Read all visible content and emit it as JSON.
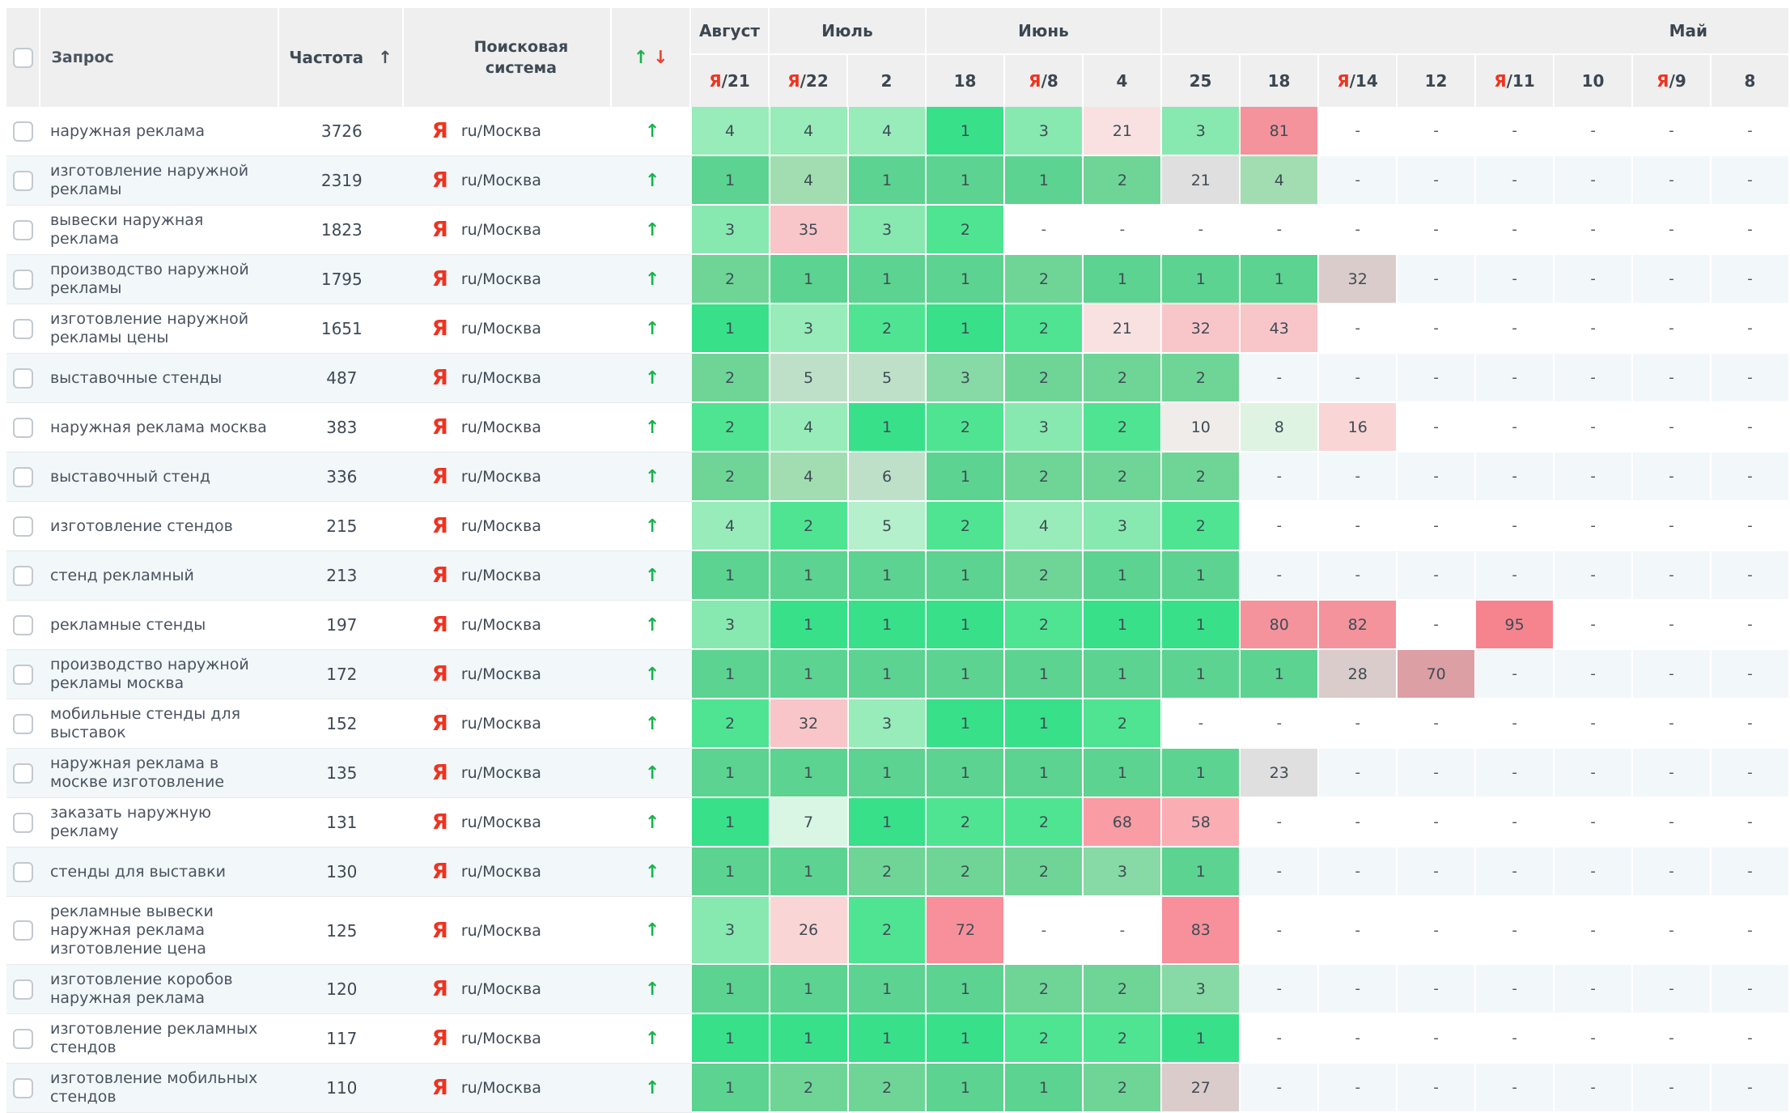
{
  "header": {
    "query_label": "Запрос",
    "frequency_label": "Частота",
    "frequency_sort_arrow": "↑",
    "engine_label": "Поисковая система",
    "trend_up": "↑",
    "trend_down": "↓",
    "month_groups": [
      {
        "label": "Август",
        "span": 1,
        "align": "center"
      },
      {
        "label": "Июль",
        "span": 2,
        "align": "center"
      },
      {
        "label": "Июнь",
        "span": 3,
        "align": "center"
      },
      {
        "label": "Май",
        "span": 8,
        "align": "right"
      }
    ],
    "date_columns": [
      {
        "ya": true,
        "day": "21"
      },
      {
        "ya": true,
        "day": "22"
      },
      {
        "ya": false,
        "day": "2"
      },
      {
        "ya": false,
        "day": "18"
      },
      {
        "ya": true,
        "day": "8"
      },
      {
        "ya": false,
        "day": "4"
      },
      {
        "ya": false,
        "day": "25"
      },
      {
        "ya": false,
        "day": "18"
      },
      {
        "ya": true,
        "day": "14"
      },
      {
        "ya": false,
        "day": "12"
      },
      {
        "ya": true,
        "day": "11"
      },
      {
        "ya": false,
        "day": "10"
      },
      {
        "ya": true,
        "day": "9"
      },
      {
        "ya": false,
        "day": "8"
      }
    ],
    "ya_prefix": "Я",
    "day_separator": "/"
  },
  "engine": {
    "logo": "Я",
    "region": "ru/Москва"
  },
  "colors": {
    "accent_green": "#17b34b",
    "accent_red": "#e8432d",
    "yandex_red": "#f0321f",
    "header_bg": "#efefef",
    "alt_row_bg": "#f2f7fa"
  },
  "rows": [
    {
      "query": "наружная реклама",
      "frequency": "3726",
      "trend": "up",
      "cells": [
        [
          "4",
          "g4v"
        ],
        [
          "4",
          "g4v"
        ],
        [
          "4",
          "g4v"
        ],
        [
          "1",
          "g1v"
        ],
        [
          "3",
          "g3v"
        ],
        [
          "21",
          "p1"
        ],
        [
          "3",
          "g3v"
        ],
        [
          "81",
          "r1"
        ],
        [
          "-",
          ""
        ],
        [
          "-",
          ""
        ],
        [
          "-",
          ""
        ],
        [
          "-",
          ""
        ],
        [
          "-",
          ""
        ],
        [
          "-",
          ""
        ]
      ]
    },
    {
      "query": "изготовление наружной рекламы",
      "frequency": "2319",
      "trend": "up",
      "cells": [
        [
          "1",
          "g1m"
        ],
        [
          "4",
          "g4m"
        ],
        [
          "1",
          "g1m"
        ],
        [
          "1",
          "g1m"
        ],
        [
          "1",
          "g1m"
        ],
        [
          "2",
          "g2m"
        ],
        [
          "21",
          "gray"
        ],
        [
          "4",
          "g4m"
        ],
        [
          "-",
          ""
        ],
        [
          "-",
          ""
        ],
        [
          "-",
          ""
        ],
        [
          "-",
          ""
        ],
        [
          "-",
          ""
        ],
        [
          "-",
          ""
        ]
      ]
    },
    {
      "query": "вывески наружная реклама",
      "frequency": "1823",
      "trend": "up",
      "cells": [
        [
          "3",
          "g3v"
        ],
        [
          "35",
          "p2"
        ],
        [
          "3",
          "g3v"
        ],
        [
          "2",
          "g2v"
        ],
        [
          "-",
          ""
        ],
        [
          "-",
          ""
        ],
        [
          "-",
          ""
        ],
        [
          "-",
          ""
        ],
        [
          "-",
          ""
        ],
        [
          "-",
          ""
        ],
        [
          "-",
          ""
        ],
        [
          "-",
          ""
        ],
        [
          "-",
          ""
        ],
        [
          "-",
          ""
        ]
      ]
    },
    {
      "query": "производство наружной рекламы",
      "frequency": "1795",
      "trend": "up",
      "cells": [
        [
          "2",
          "g2m"
        ],
        [
          "1",
          "g1m"
        ],
        [
          "1",
          "g1m"
        ],
        [
          "1",
          "g1m"
        ],
        [
          "2",
          "g2m"
        ],
        [
          "1",
          "g1m"
        ],
        [
          "1",
          "g1m"
        ],
        [
          "1",
          "g1m"
        ],
        [
          "32",
          "pgray"
        ],
        [
          "-",
          ""
        ],
        [
          "-",
          ""
        ],
        [
          "-",
          ""
        ],
        [
          "-",
          ""
        ],
        [
          "-",
          ""
        ]
      ]
    },
    {
      "query": "изготовление наружной рекламы цены",
      "frequency": "1651",
      "trend": "up",
      "cells": [
        [
          "1",
          "g1v"
        ],
        [
          "3",
          "g4v"
        ],
        [
          "2",
          "g2v"
        ],
        [
          "1",
          "g1v"
        ],
        [
          "2",
          "g2v"
        ],
        [
          "21",
          "p1"
        ],
        [
          "32",
          "p2"
        ],
        [
          "43",
          "p2"
        ],
        [
          "-",
          ""
        ],
        [
          "-",
          ""
        ],
        [
          "-",
          ""
        ],
        [
          "-",
          ""
        ],
        [
          "-",
          ""
        ],
        [
          "-",
          ""
        ]
      ]
    },
    {
      "query": "выставочные стенды",
      "frequency": "487",
      "trend": "up",
      "cells": [
        [
          "2",
          "g2m"
        ],
        [
          "5",
          "g5m"
        ],
        [
          "5",
          "g5m"
        ],
        [
          "3",
          "g3m"
        ],
        [
          "2",
          "g2m"
        ],
        [
          "2",
          "g2m"
        ],
        [
          "2",
          "g2m"
        ],
        [
          "-",
          ""
        ],
        [
          "-",
          ""
        ],
        [
          "-",
          ""
        ],
        [
          "-",
          ""
        ],
        [
          "-",
          ""
        ],
        [
          "-",
          ""
        ],
        [
          "-",
          ""
        ]
      ]
    },
    {
      "query": "наружная реклама москва",
      "frequency": "383",
      "trend": "up",
      "cells": [
        [
          "2",
          "g2v"
        ],
        [
          "4",
          "g4v"
        ],
        [
          "1",
          "g1v"
        ],
        [
          "2",
          "g2v"
        ],
        [
          "3",
          "g3v"
        ],
        [
          "2",
          "g2v"
        ],
        [
          "10",
          "gray2"
        ],
        [
          "8",
          "gpale"
        ],
        [
          "16",
          "p3"
        ],
        [
          "-",
          ""
        ],
        [
          "-",
          ""
        ],
        [
          "-",
          ""
        ],
        [
          "-",
          ""
        ],
        [
          "-",
          ""
        ]
      ]
    },
    {
      "query": "выставочный стенд",
      "frequency": "336",
      "trend": "up",
      "cells": [
        [
          "2",
          "g2m"
        ],
        [
          "4",
          "g4m"
        ],
        [
          "6",
          "g5m"
        ],
        [
          "1",
          "g1m"
        ],
        [
          "2",
          "g2m"
        ],
        [
          "2",
          "g2m"
        ],
        [
          "2",
          "g2m"
        ],
        [
          "-",
          ""
        ],
        [
          "-",
          ""
        ],
        [
          "-",
          ""
        ],
        [
          "-",
          ""
        ],
        [
          "-",
          ""
        ],
        [
          "-",
          ""
        ],
        [
          "-",
          ""
        ]
      ]
    },
    {
      "query": "изготовление стендов",
      "frequency": "215",
      "trend": "up",
      "cells": [
        [
          "4",
          "g4v"
        ],
        [
          "2",
          "g2v"
        ],
        [
          "5",
          "g5v"
        ],
        [
          "2",
          "g2v"
        ],
        [
          "4",
          "g4v"
        ],
        [
          "3",
          "g3v"
        ],
        [
          "2",
          "g2v"
        ],
        [
          "-",
          ""
        ],
        [
          "-",
          ""
        ],
        [
          "-",
          ""
        ],
        [
          "-",
          ""
        ],
        [
          "-",
          ""
        ],
        [
          "-",
          ""
        ],
        [
          "-",
          ""
        ]
      ]
    },
    {
      "query": "стенд рекламный",
      "frequency": "213",
      "trend": "up",
      "cells": [
        [
          "1",
          "g1m"
        ],
        [
          "1",
          "g1m"
        ],
        [
          "1",
          "g1m"
        ],
        [
          "1",
          "g1m"
        ],
        [
          "2",
          "g2m"
        ],
        [
          "1",
          "g1m"
        ],
        [
          "1",
          "g1m"
        ],
        [
          "-",
          ""
        ],
        [
          "-",
          ""
        ],
        [
          "-",
          ""
        ],
        [
          "-",
          ""
        ],
        [
          "-",
          ""
        ],
        [
          "-",
          ""
        ],
        [
          "-",
          ""
        ]
      ]
    },
    {
      "query": "рекламные стенды",
      "frequency": "197",
      "trend": "up",
      "cells": [
        [
          "3",
          "g3v"
        ],
        [
          "1",
          "g1v"
        ],
        [
          "1",
          "g1v"
        ],
        [
          "1",
          "g1v"
        ],
        [
          "2",
          "g2v"
        ],
        [
          "1",
          "g1v"
        ],
        [
          "1",
          "g1v"
        ],
        [
          "80",
          "r1"
        ],
        [
          "82",
          "r1"
        ],
        [
          "-",
          ""
        ],
        [
          "95",
          "r2"
        ],
        [
          "-",
          ""
        ],
        [
          "-",
          ""
        ],
        [
          "-",
          ""
        ]
      ]
    },
    {
      "query": "производство наружной рекламы москва",
      "frequency": "172",
      "trend": "up",
      "cells": [
        [
          "1",
          "g1m"
        ],
        [
          "1",
          "g1m"
        ],
        [
          "1",
          "g1m"
        ],
        [
          "1",
          "g1m"
        ],
        [
          "1",
          "g1m"
        ],
        [
          "1",
          "g1m"
        ],
        [
          "1",
          "g1m"
        ],
        [
          "1",
          "g1m"
        ],
        [
          "28",
          "pgray"
        ],
        [
          "70",
          "r6"
        ],
        [
          "-",
          ""
        ],
        [
          "-",
          ""
        ],
        [
          "-",
          ""
        ],
        [
          "-",
          ""
        ]
      ]
    },
    {
      "query": "мобильные стенды для выставок",
      "frequency": "152",
      "trend": "up",
      "cells": [
        [
          "2",
          "g2v"
        ],
        [
          "32",
          "p2"
        ],
        [
          "3",
          "g4v"
        ],
        [
          "1",
          "g1v"
        ],
        [
          "1",
          "g1v"
        ],
        [
          "2",
          "g2v"
        ],
        [
          "-",
          ""
        ],
        [
          "-",
          ""
        ],
        [
          "-",
          ""
        ],
        [
          "-",
          ""
        ],
        [
          "-",
          ""
        ],
        [
          "-",
          ""
        ],
        [
          "-",
          ""
        ],
        [
          "-",
          ""
        ]
      ]
    },
    {
      "query": "наружная реклама в москве изготовление",
      "frequency": "135",
      "trend": "up",
      "cells": [
        [
          "1",
          "g1m"
        ],
        [
          "1",
          "g1m"
        ],
        [
          "1",
          "g1m"
        ],
        [
          "1",
          "g1m"
        ],
        [
          "1",
          "g1m"
        ],
        [
          "1",
          "g1m"
        ],
        [
          "1",
          "g1m"
        ],
        [
          "23",
          "gray"
        ],
        [
          "-",
          ""
        ],
        [
          "-",
          ""
        ],
        [
          "-",
          ""
        ],
        [
          "-",
          ""
        ],
        [
          "-",
          ""
        ],
        [
          "-",
          ""
        ]
      ]
    },
    {
      "query": "заказать наружную рекламу",
      "frequency": "131",
      "trend": "up",
      "cells": [
        [
          "1",
          "g1v"
        ],
        [
          "7",
          "g7v"
        ],
        [
          "1",
          "g1v"
        ],
        [
          "2",
          "g2v"
        ],
        [
          "2",
          "g2v"
        ],
        [
          "68",
          "r4"
        ],
        [
          "58",
          "r5"
        ],
        [
          "-",
          ""
        ],
        [
          "-",
          ""
        ],
        [
          "-",
          ""
        ],
        [
          "-",
          ""
        ],
        [
          "-",
          ""
        ],
        [
          "-",
          ""
        ],
        [
          "-",
          ""
        ]
      ]
    },
    {
      "query": "стенды для выставки",
      "frequency": "130",
      "trend": "up",
      "cells": [
        [
          "1",
          "g1m"
        ],
        [
          "1",
          "g1m"
        ],
        [
          "2",
          "g2m"
        ],
        [
          "2",
          "g2m"
        ],
        [
          "2",
          "g2m"
        ],
        [
          "3",
          "g3m"
        ],
        [
          "1",
          "g1m"
        ],
        [
          "-",
          ""
        ],
        [
          "-",
          ""
        ],
        [
          "-",
          ""
        ],
        [
          "-",
          ""
        ],
        [
          "-",
          ""
        ],
        [
          "-",
          ""
        ],
        [
          "-",
          ""
        ]
      ]
    },
    {
      "query": "рекламные вывески наружная реклама изготовление цена",
      "frequency": "125",
      "trend": "up",
      "cells": [
        [
          "3",
          "g3v"
        ],
        [
          "26",
          "p3"
        ],
        [
          "2",
          "g2v"
        ],
        [
          "72",
          "r3"
        ],
        [
          "-",
          ""
        ],
        [
          "-",
          ""
        ],
        [
          "83",
          "r3"
        ],
        [
          "-",
          ""
        ],
        [
          "-",
          ""
        ],
        [
          "-",
          ""
        ],
        [
          "-",
          ""
        ],
        [
          "-",
          ""
        ],
        [
          "-",
          ""
        ],
        [
          "-",
          ""
        ]
      ]
    },
    {
      "query": "изготовление коробов наружная реклама",
      "frequency": "120",
      "trend": "up",
      "cells": [
        [
          "1",
          "g1m"
        ],
        [
          "1",
          "g1m"
        ],
        [
          "1",
          "g1m"
        ],
        [
          "1",
          "g1m"
        ],
        [
          "2",
          "g2m"
        ],
        [
          "2",
          "g2m"
        ],
        [
          "3",
          "g3m"
        ],
        [
          "-",
          ""
        ],
        [
          "-",
          ""
        ],
        [
          "-",
          ""
        ],
        [
          "-",
          ""
        ],
        [
          "-",
          ""
        ],
        [
          "-",
          ""
        ],
        [
          "-",
          ""
        ]
      ]
    },
    {
      "query": "изготовление рекламных стендов",
      "frequency": "117",
      "trend": "up",
      "cells": [
        [
          "1",
          "g1v"
        ],
        [
          "1",
          "g1v"
        ],
        [
          "1",
          "g1v"
        ],
        [
          "1",
          "g1v"
        ],
        [
          "2",
          "g2v"
        ],
        [
          "2",
          "g2v"
        ],
        [
          "1",
          "g1v"
        ],
        [
          "-",
          ""
        ],
        [
          "-",
          ""
        ],
        [
          "-",
          ""
        ],
        [
          "-",
          ""
        ],
        [
          "-",
          ""
        ],
        [
          "-",
          ""
        ],
        [
          "-",
          ""
        ]
      ]
    },
    {
      "query": "изготовление мобильных стендов",
      "frequency": "110",
      "trend": "up",
      "cells": [
        [
          "1",
          "g1m"
        ],
        [
          "2",
          "g2m"
        ],
        [
          "2",
          "g2m"
        ],
        [
          "1",
          "g1m"
        ],
        [
          "1",
          "g1m"
        ],
        [
          "2",
          "g2m"
        ],
        [
          "27",
          "pgray"
        ],
        [
          "-",
          ""
        ],
        [
          "-",
          ""
        ],
        [
          "-",
          ""
        ],
        [
          "-",
          ""
        ],
        [
          "-",
          ""
        ],
        [
          "-",
          ""
        ],
        [
          "-",
          ""
        ]
      ]
    }
  ]
}
